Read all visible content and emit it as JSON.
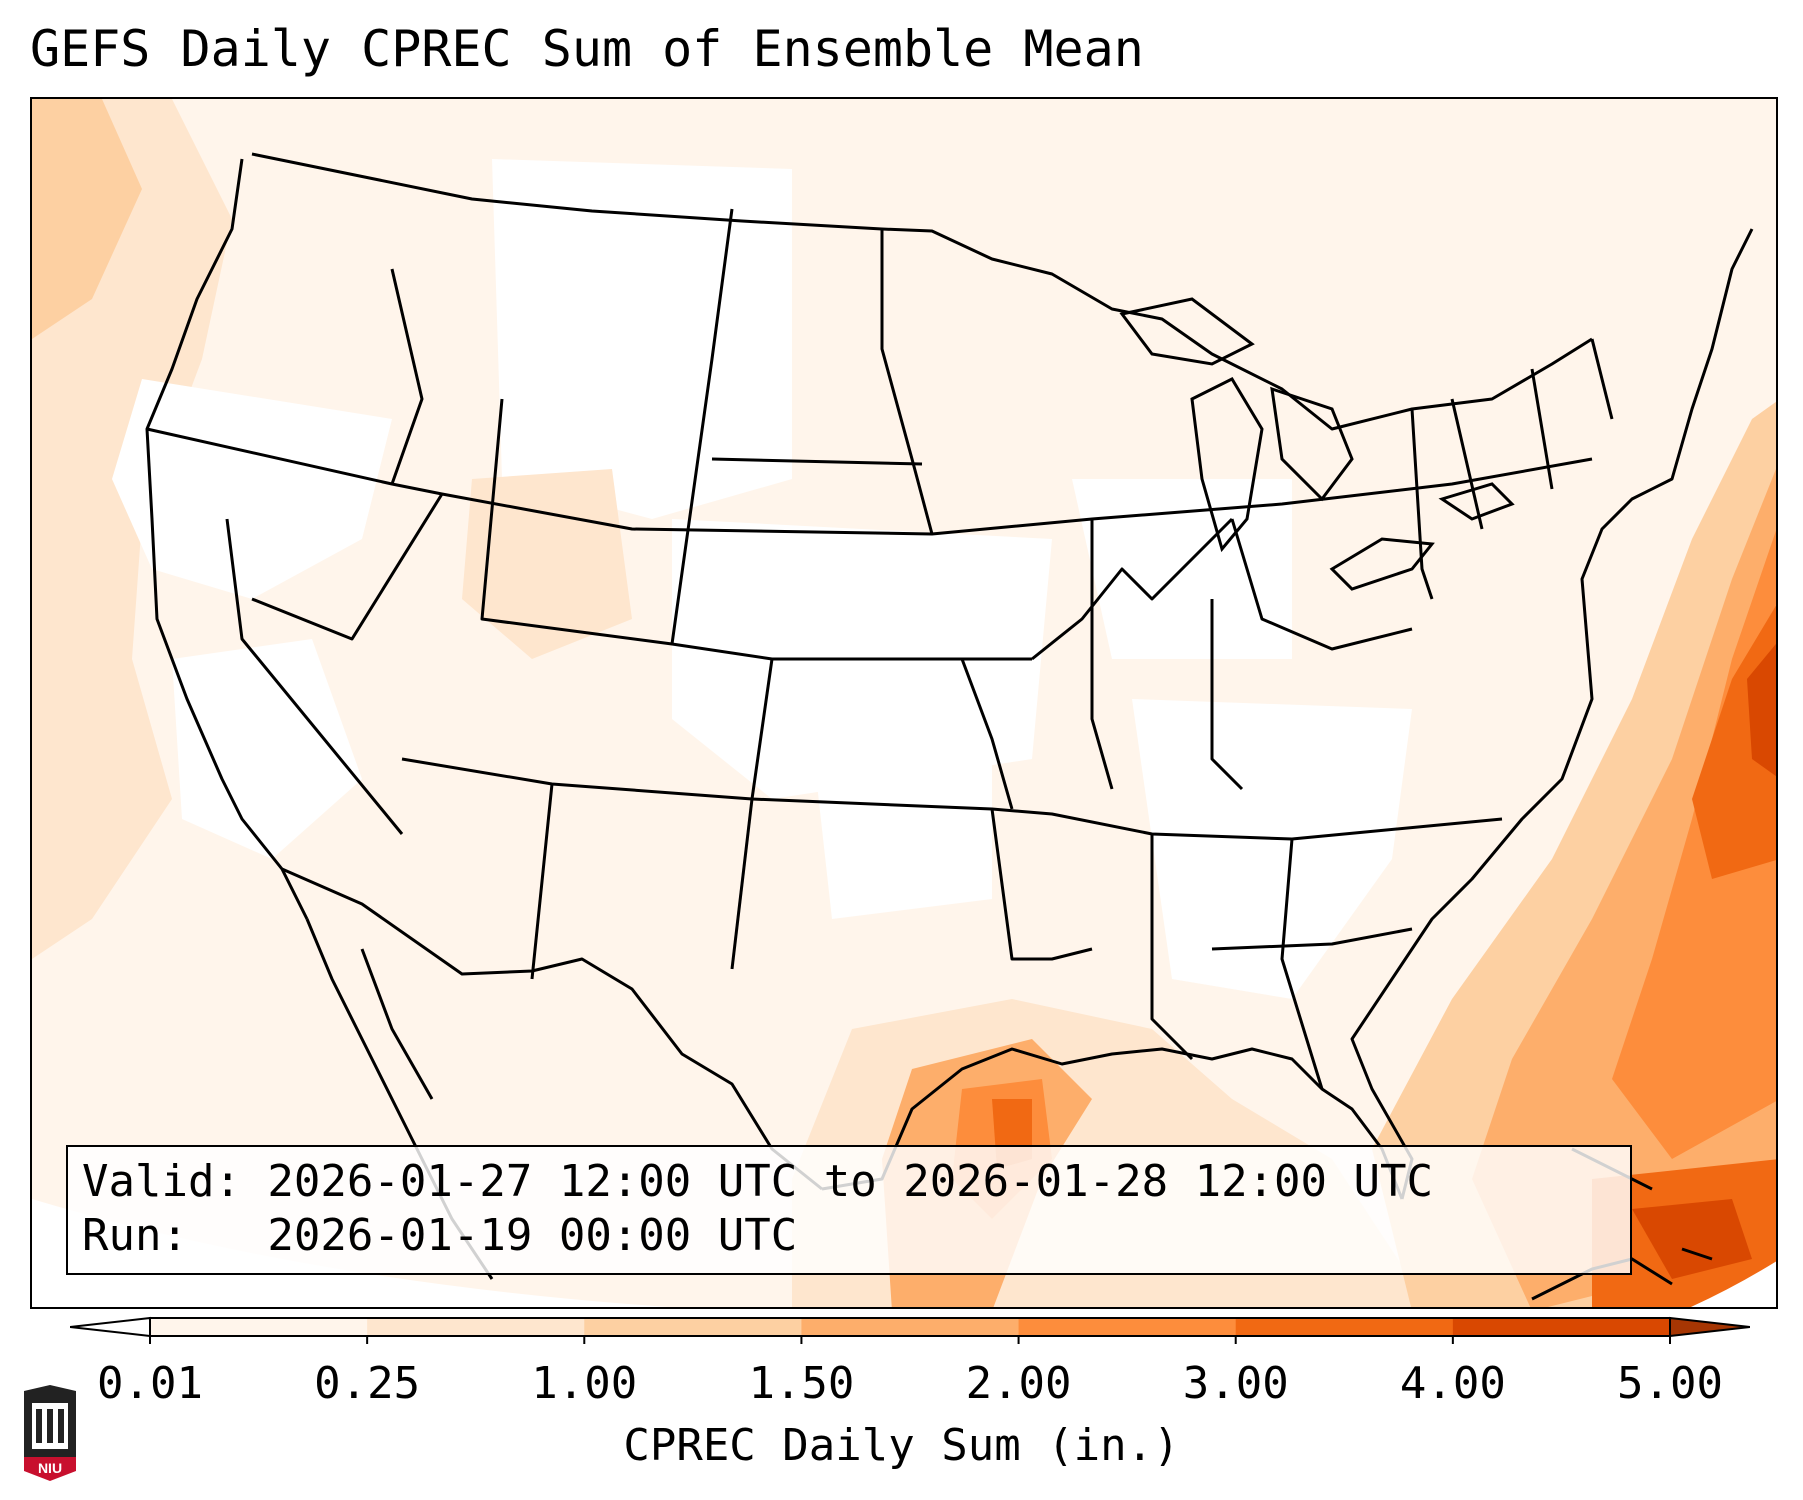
{
  "title": "GEFS Daily CPREC Sum of Ensemble Mean",
  "valid_box": {
    "valid_line": "Valid: 2026-01-27 12:00 UTC to 2026-01-28 12:00 UTC",
    "run_line": "Run:   2026-01-19 00:00 UTC"
  },
  "colorbar": {
    "label": "CPREC Daily Sum (in.)",
    "ticks": [
      "0.01",
      "0.25",
      "1.00",
      "1.50",
      "2.00",
      "3.00",
      "4.00",
      "5.00"
    ],
    "colors": [
      "#fff5eb",
      "#fee6ce",
      "#fdd0a2",
      "#fdae6b",
      "#fd8d3c",
      "#f16913",
      "#d94801"
    ],
    "under_color": "#ffffff",
    "over_color": "#a63603"
  },
  "map": {
    "region": "Contiguous United States",
    "overlays": [
      "state-borders",
      "country-borders",
      "coastlines",
      "great-lakes"
    ]
  },
  "logo": {
    "text": "NIU",
    "color": "#c8102e"
  }
}
